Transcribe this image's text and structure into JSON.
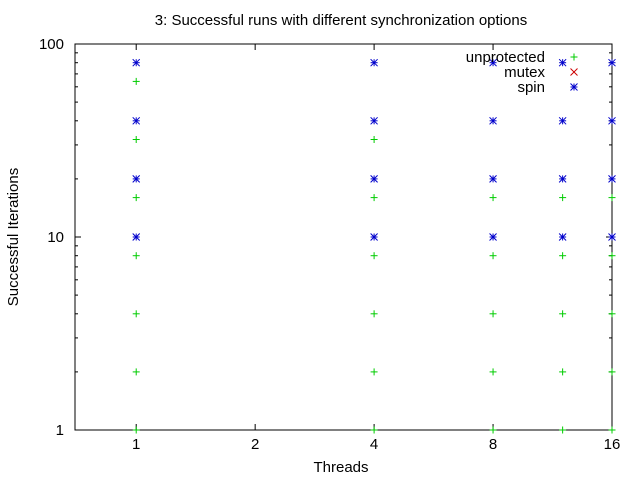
{
  "chart_data": {
    "type": "scatter",
    "title": "3: Successful runs with different synchronization options",
    "xlabel": "Threads",
    "ylabel": "Successful Iterations",
    "x_scale": "log2",
    "y_scale": "log10",
    "xlim": [
      0.7,
      16
    ],
    "ylim": [
      1,
      100
    ],
    "x_ticks": [
      1,
      2,
      4,
      8,
      16
    ],
    "x_tick_labels": [
      "1",
      "2",
      "4",
      "8",
      "16"
    ],
    "y_ticks": [
      1,
      10,
      100
    ],
    "y_tick_labels": [
      "1",
      "10",
      "100"
    ],
    "grid": false,
    "legend_position": "top-right",
    "series": [
      {
        "name": "unprotected",
        "marker": "plus",
        "color": "#00cc00",
        "points": [
          [
            1,
            1
          ],
          [
            1,
            2
          ],
          [
            1,
            4
          ],
          [
            1,
            8
          ],
          [
            1,
            16
          ],
          [
            1,
            32
          ],
          [
            1,
            64
          ],
          [
            4,
            1
          ],
          [
            4,
            2
          ],
          [
            4,
            4
          ],
          [
            4,
            8
          ],
          [
            4,
            16
          ],
          [
            4,
            32
          ],
          [
            8,
            1
          ],
          [
            8,
            2
          ],
          [
            8,
            4
          ],
          [
            8,
            8
          ],
          [
            8,
            16
          ],
          [
            12,
            1
          ],
          [
            12,
            2
          ],
          [
            12,
            4
          ],
          [
            12,
            8
          ],
          [
            12,
            16
          ],
          [
            16,
            1
          ],
          [
            16,
            2
          ],
          [
            16,
            4
          ],
          [
            16,
            8
          ],
          [
            16,
            16
          ]
        ]
      },
      {
        "name": "mutex",
        "marker": "cross",
        "color": "#cc0000",
        "points": []
      },
      {
        "name": "spin",
        "marker": "star",
        "color": "#0000cc",
        "points": [
          [
            1,
            10
          ],
          [
            1,
            20
          ],
          [
            1,
            40
          ],
          [
            1,
            80
          ],
          [
            4,
            10
          ],
          [
            4,
            20
          ],
          [
            4,
            40
          ],
          [
            4,
            80
          ],
          [
            8,
            10
          ],
          [
            8,
            20
          ],
          [
            8,
            40
          ],
          [
            8,
            80
          ],
          [
            12,
            10
          ],
          [
            12,
            20
          ],
          [
            12,
            40
          ],
          [
            12,
            80
          ],
          [
            16,
            10
          ],
          [
            16,
            20
          ],
          [
            16,
            40
          ],
          [
            16,
            80
          ]
        ]
      }
    ]
  }
}
